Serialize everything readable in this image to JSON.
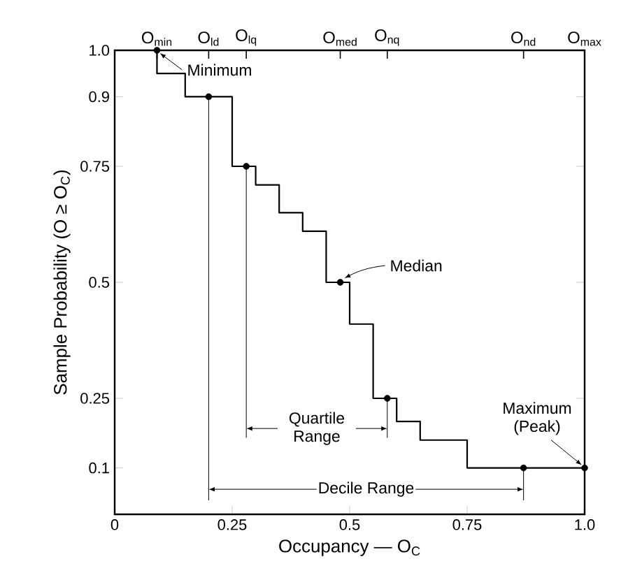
{
  "chart_data": {
    "type": "step",
    "xlabel": "Occupancy — O$_{C}$",
    "ylabel": "Sample Probability (O ≥ O$_{C}$)",
    "xlim": [
      0,
      1
    ],
    "xticks": [
      0,
      0.25,
      0.5,
      0.75,
      {
        "value": 1,
        "label": "1.0"
      }
    ],
    "ylim": [
      0,
      1
    ],
    "yticks": [
      0.1,
      0.25,
      0.5,
      0.75,
      0.9,
      {
        "value": 1,
        "label": "1.0"
      }
    ],
    "series": [
      {
        "color": "#000000",
        "marker": "none",
        "x": [
          0.09,
          0.09,
          0.15,
          0.25,
          0.3,
          0.35,
          0.4,
          0.45,
          0.5,
          0.55,
          0.6,
          0.65,
          0.75,
          1.0
        ],
        "values": [
          1.0,
          0.95,
          0.9,
          0.75,
          0.71,
          0.65,
          0.61,
          0.5,
          0.41,
          0.25,
          0.2,
          0.16,
          0.1,
          0.1
        ]
      },
      {
        "type": "scatter",
        "color": "#000000",
        "marker": "circle",
        "x": [
          0.09,
          0.2,
          0.28,
          0.48,
          0.58,
          0.87,
          1.0
        ],
        "values": [
          1.0,
          0.9,
          0.75,
          0.5,
          0.25,
          0.1,
          0.1
        ],
        "errors": [
          null,
          [
            0.03,
            0.9
          ],
          [
            0.165,
            0.75
          ],
          null,
          [
            0.165,
            0.25
          ],
          [
            0.03,
            0.1
          ],
          null
        ]
      }
    ],
    "annotations": [
      {
        "text": "Minimum",
        "x": 0.09,
        "y": 1.0
      },
      {
        "text": "Median",
        "x": 0.48,
        "y": 0.5
      },
      {
        "text": "Maximum (Peak)",
        "x": 1.0,
        "y": 0.1
      },
      "Quartile Range",
      "Decile Range",
      "O$_{min}$",
      "O$_{ld}$",
      "O$_{lq}$",
      "O$_{med}$",
      "O$_{nq}$",
      "O$_{nd}$",
      "O$_{max}$"
    ]
  }
}
